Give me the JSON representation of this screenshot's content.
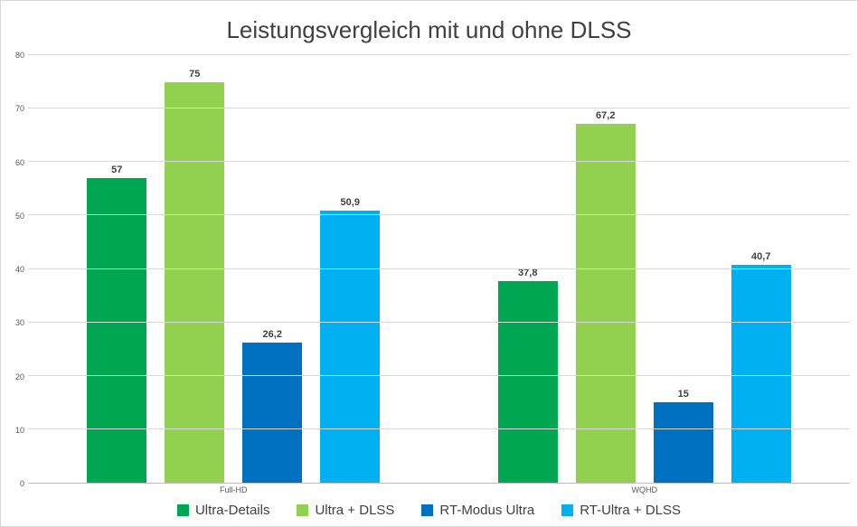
{
  "chart_data": {
    "type": "bar",
    "title": "Leistungsvergleich mit und ohne DLSS",
    "categories": [
      "Full-HD",
      "WQHD"
    ],
    "series": [
      {
        "name": "Ultra-Details",
        "color": "#00A651",
        "values": [
          57,
          37.8
        ],
        "labels": [
          "57",
          "37,8"
        ]
      },
      {
        "name": "Ultra + DLSS",
        "color": "#92D050",
        "values": [
          75,
          67.2
        ],
        "labels": [
          "75",
          "67,2"
        ]
      },
      {
        "name": "RT-Modus Ultra",
        "color": "#0070C0",
        "values": [
          26.2,
          15
        ],
        "labels": [
          "26,2",
          "15"
        ]
      },
      {
        "name": "RT-Ultra + DLSS",
        "color": "#00B0F0",
        "values": [
          50.9,
          40.7
        ],
        "labels": [
          "50,9",
          "40,7"
        ]
      }
    ],
    "xlabel": "",
    "ylabel": "",
    "ylim": [
      0,
      80
    ],
    "ytick_step": 10,
    "ytick_labels": [
      "0",
      "10",
      "20",
      "30",
      "40",
      "50",
      "60",
      "70",
      "80"
    ],
    "grid": "horizontal",
    "legend_position": "bottom",
    "colors": {
      "gridline": "#D9D9D9",
      "axis_line": "#BFBFBF",
      "title_text": "#404040",
      "tick_text": "#595959",
      "label_text": "#404040"
    }
  }
}
